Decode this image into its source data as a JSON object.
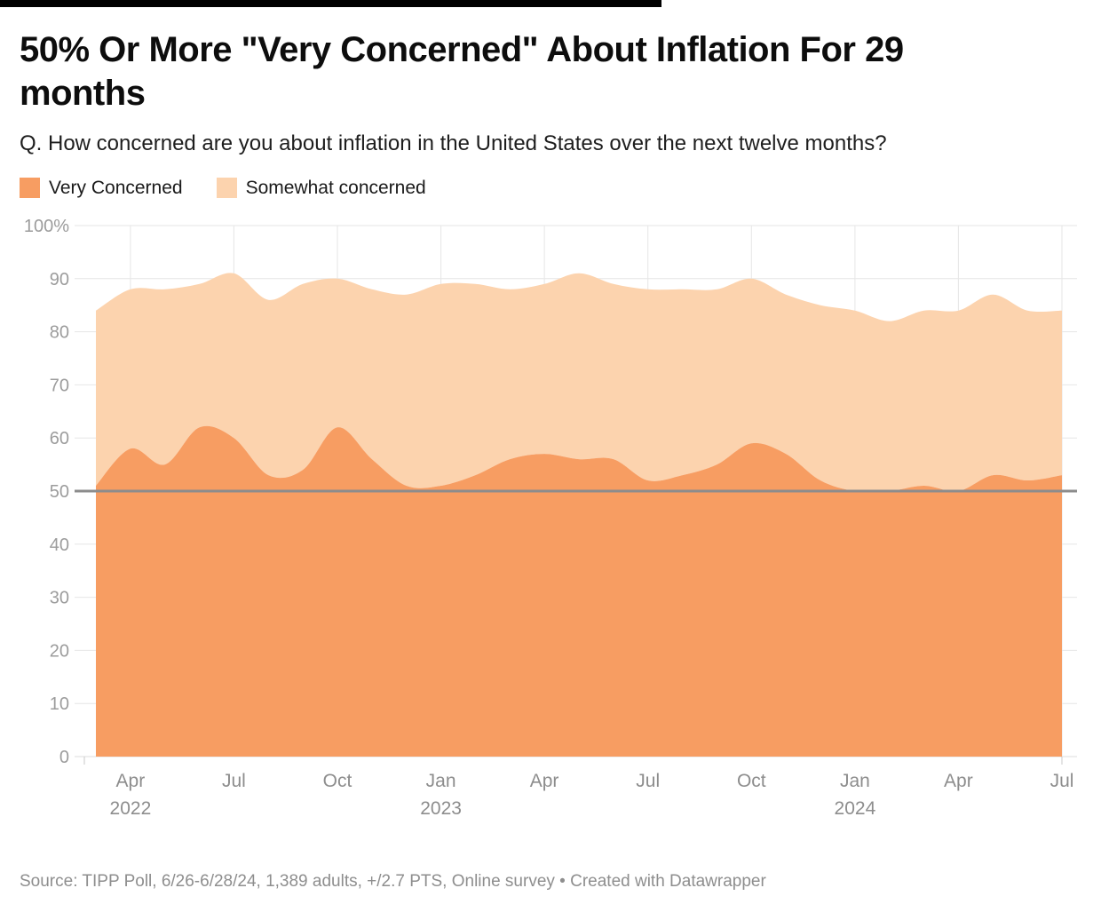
{
  "header": {
    "title": "50% Or More \"Very Concerned\" About Inflation For 29 months",
    "subtitle": "Q. How concerned are you about inflation in the United States over the next twelve months?"
  },
  "legend": {
    "items": [
      {
        "label": "Very Concerned",
        "color": "#f79d62"
      },
      {
        "label": "Somewhat concerned",
        "color": "#fcd3ae"
      }
    ]
  },
  "footer": {
    "source": "Source: TIPP Poll, 6/26-6/28/24, 1,389 adults, +/2.7 PTS, Online survey • Created with Datawrapper"
  },
  "chart_data": {
    "type": "area",
    "stacked": true,
    "smooth": true,
    "x": [
      "Mar 2022",
      "Apr 2022",
      "May 2022",
      "Jun 2022",
      "Jul 2022",
      "Aug 2022",
      "Sep 2022",
      "Oct 2022",
      "Nov 2022",
      "Dec 2022",
      "Jan 2023",
      "Feb 2023",
      "Mar 2023",
      "Apr 2023",
      "May 2023",
      "Jun 2023",
      "Jul 2023",
      "Aug 2023",
      "Sep 2023",
      "Oct 2023",
      "Nov 2023",
      "Dec 2023",
      "Jan 2024",
      "Feb 2024",
      "Mar 2024",
      "Apr 2024",
      "May 2024",
      "Jun 2024",
      "Jul 2024"
    ],
    "series": [
      {
        "name": "Very Concerned",
        "color": "#f79d62",
        "values": [
          51,
          58,
          55,
          62,
          60,
          53,
          54,
          62,
          56,
          51,
          51,
          53,
          56,
          57,
          56,
          56,
          52,
          53,
          55,
          59,
          57,
          52,
          50,
          50,
          51,
          50,
          53,
          52,
          53
        ]
      },
      {
        "name": "Somewhat concerned",
        "color": "#fcd3ae",
        "values": [
          33,
          30,
          33,
          27,
          31,
          33,
          35,
          28,
          32,
          36,
          38,
          36,
          32,
          32,
          35,
          33,
          36,
          35,
          33,
          31,
          30,
          33,
          34,
          32,
          33,
          34,
          34,
          32,
          31
        ]
      }
    ],
    "y_axis": {
      "min": 0,
      "max": 100,
      "tick_step": 10,
      "top_tick_label": "100%",
      "reference_line": 50
    },
    "x_ticks": [
      {
        "i": 1,
        "label": "Apr",
        "year": "2022"
      },
      {
        "i": 4,
        "label": "Jul"
      },
      {
        "i": 7,
        "label": "Oct"
      },
      {
        "i": 10,
        "label": "Jan",
        "year": "2023"
      },
      {
        "i": 13,
        "label": "Apr"
      },
      {
        "i": 16,
        "label": "Jul"
      },
      {
        "i": 19,
        "label": "Oct"
      },
      {
        "i": 22,
        "label": "Jan",
        "year": "2024"
      },
      {
        "i": 25,
        "label": "Apr"
      },
      {
        "i": 28,
        "label": "Jul"
      }
    ],
    "colors": {
      "grid": "#e6e6e6",
      "baseline": "#dcdcdc",
      "reference_line": "#8c8c8c",
      "y_label": "#9c9c9c",
      "x_label": "#8d8d8d"
    },
    "legend_position": "top-left",
    "grid": true
  }
}
